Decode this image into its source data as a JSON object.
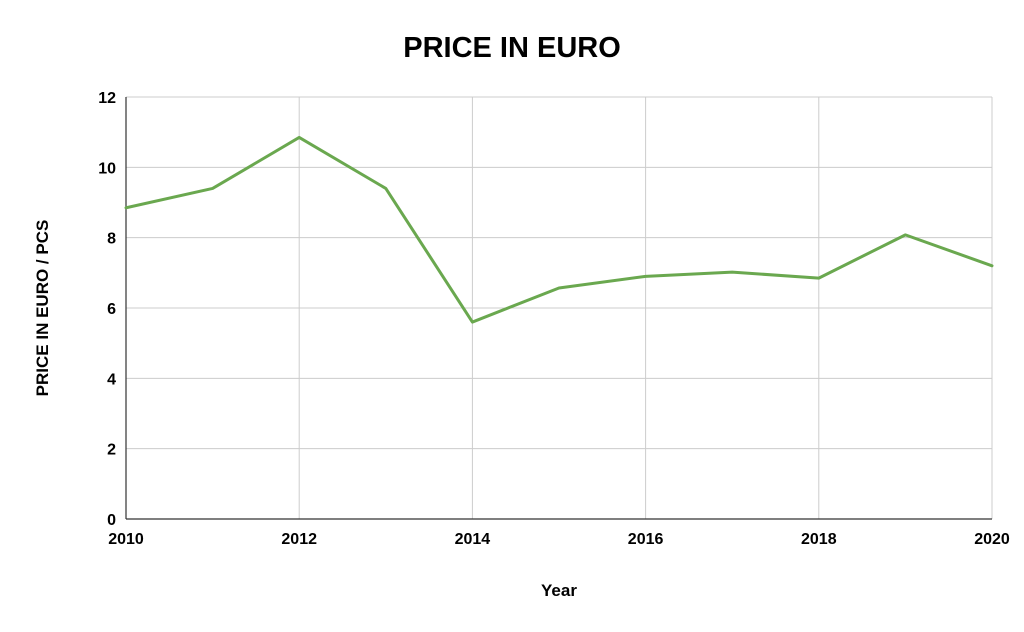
{
  "chart_data": {
    "type": "line",
    "title": "PRICE IN EURO",
    "xlabel": "Year",
    "ylabel": "PRICE IN EURO / PCS",
    "x": [
      2010,
      2011,
      2012,
      2013,
      2014,
      2015,
      2016,
      2017,
      2018,
      2019,
      2020
    ],
    "series": [
      {
        "values": [
          8.85,
          9.4,
          10.85,
          9.4,
          5.6,
          6.57,
          6.9,
          7.02,
          6.85,
          8.08,
          7.2
        ],
        "color": "#6aa84f"
      }
    ],
    "xlim": [
      2010,
      2020
    ],
    "ylim": [
      0,
      12
    ],
    "x_ticks": [
      "2010",
      "2012",
      "2014",
      "2016",
      "2018",
      "2020"
    ],
    "y_ticks": [
      "0",
      "2",
      "4",
      "6",
      "8",
      "10",
      "12"
    ],
    "grid": true,
    "legend": "none"
  }
}
